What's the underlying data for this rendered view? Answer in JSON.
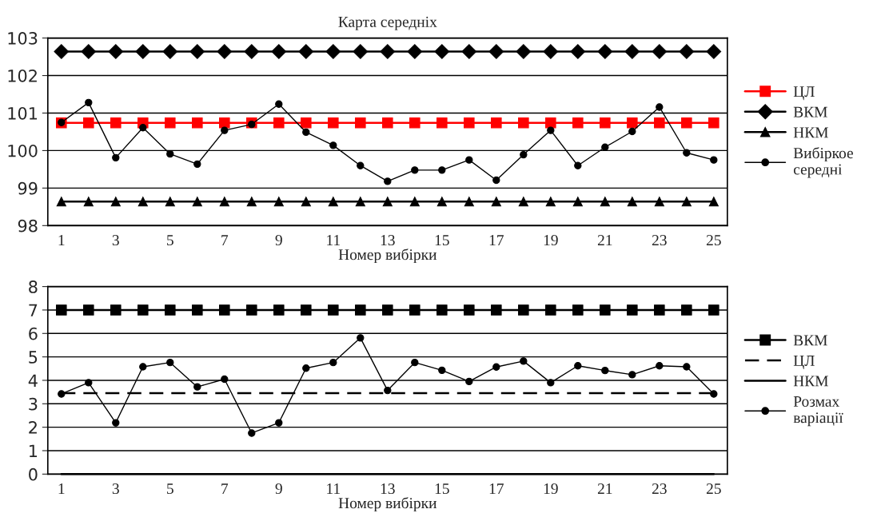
{
  "chart_data": [
    {
      "type": "line",
      "title": "Карта середніх",
      "xlabel": "Номер вибірки",
      "categories": [
        "1",
        null,
        "3",
        null,
        "5",
        null,
        "7",
        null,
        "9",
        null,
        "11",
        null,
        "13",
        null,
        "15",
        null,
        "17",
        null,
        "19",
        null,
        "21",
        null,
        "23",
        null,
        "25"
      ],
      "ylim": [
        98,
        103
      ],
      "yticks": [
        98,
        99,
        100,
        101,
        102,
        103
      ],
      "grid": "y",
      "legend": "right",
      "series": [
        {
          "name": "ЦЛ",
          "color": "#ff0000",
          "marker": "square",
          "line_style": "solid",
          "values": [
            100.74,
            100.74,
            100.74,
            100.74,
            100.74,
            100.74,
            100.74,
            100.74,
            100.74,
            100.74,
            100.74,
            100.74,
            100.74,
            100.74,
            100.74,
            100.74,
            100.74,
            100.74,
            100.74,
            100.74,
            100.74,
            100.74,
            100.74,
            100.74,
            100.74
          ]
        },
        {
          "name": "ВКМ",
          "color": "#000000",
          "marker": "diamond",
          "line_style": "solid",
          "values": [
            102.64,
            102.64,
            102.64,
            102.64,
            102.64,
            102.64,
            102.64,
            102.64,
            102.64,
            102.64,
            102.64,
            102.64,
            102.64,
            102.64,
            102.64,
            102.64,
            102.64,
            102.64,
            102.64,
            102.64,
            102.64,
            102.64,
            102.64,
            102.64,
            102.64
          ]
        },
        {
          "name": "НКМ",
          "color": "#000000",
          "marker": "triangle",
          "line_style": "solid",
          "values": [
            98.64,
            98.64,
            98.64,
            98.64,
            98.64,
            98.64,
            98.64,
            98.64,
            98.64,
            98.64,
            98.64,
            98.64,
            98.64,
            98.64,
            98.64,
            98.64,
            98.64,
            98.64,
            98.64,
            98.64,
            98.64,
            98.64,
            98.64,
            98.64,
            98.64
          ]
        },
        {
          "name": "Вибіркое\nсередні",
          "color": "#000000",
          "marker": "circle",
          "line_style": "solid",
          "values": [
            100.75,
            101.28,
            99.81,
            100.61,
            99.91,
            99.64,
            100.54,
            100.7,
            101.24,
            100.49,
            100.14,
            99.6,
            99.18,
            99.48,
            99.48,
            99.75,
            99.21,
            99.89,
            100.54,
            99.6,
            100.09,
            100.51,
            101.16,
            99.94,
            99.75
          ]
        }
      ]
    },
    {
      "type": "line",
      "xlabel": "Номер вибірки",
      "categories": [
        "1",
        null,
        "3",
        null,
        "5",
        null,
        "7",
        null,
        "9",
        null,
        "11",
        null,
        "13",
        null,
        "15",
        null,
        "17",
        null,
        "19",
        null,
        "21",
        null,
        "23",
        null,
        "25"
      ],
      "ylim": [
        0,
        8
      ],
      "yticks": [
        0,
        1,
        2,
        3,
        4,
        5,
        6,
        7,
        8
      ],
      "grid": "y",
      "legend": "right",
      "series": [
        {
          "name": "ВКМ",
          "color": "#000000",
          "marker": "square",
          "line_style": "solid",
          "values": [
            7,
            7,
            7,
            7,
            7,
            7,
            7,
            7,
            7,
            7,
            7,
            7,
            7,
            7,
            7,
            7,
            7,
            7,
            7,
            7,
            7,
            7,
            7,
            7,
            7
          ]
        },
        {
          "name": "ЦЛ",
          "color": "#000000",
          "marker": "none",
          "line_style": "dashed",
          "values": [
            3.45,
            3.45,
            3.45,
            3.45,
            3.45,
            3.45,
            3.45,
            3.45,
            3.45,
            3.45,
            3.45,
            3.45,
            3.45,
            3.45,
            3.45,
            3.45,
            3.45,
            3.45,
            3.45,
            3.45,
            3.45,
            3.45,
            3.45,
            3.45,
            3.45
          ]
        },
        {
          "name": "НКМ",
          "color": "#000000",
          "marker": "none",
          "line_style": "solid",
          "values": [
            0,
            0,
            0,
            0,
            0,
            0,
            0,
            0,
            0,
            0,
            0,
            0,
            0,
            0,
            0,
            0,
            0,
            0,
            0,
            0,
            0,
            0,
            0,
            0,
            0
          ]
        },
        {
          "name": "Розмах\nваріації",
          "color": "#000000",
          "marker": "circle",
          "line_style": "solid",
          "values": [
            3.42,
            3.9,
            2.19,
            4.58,
            4.76,
            3.72,
            4.05,
            1.75,
            2.19,
            4.52,
            4.76,
            5.81,
            3.57,
            4.76,
            4.43,
            3.95,
            4.57,
            4.82,
            3.9,
            4.62,
            4.42,
            4.24,
            4.62,
            4.58,
            3.42
          ]
        }
      ]
    }
  ]
}
